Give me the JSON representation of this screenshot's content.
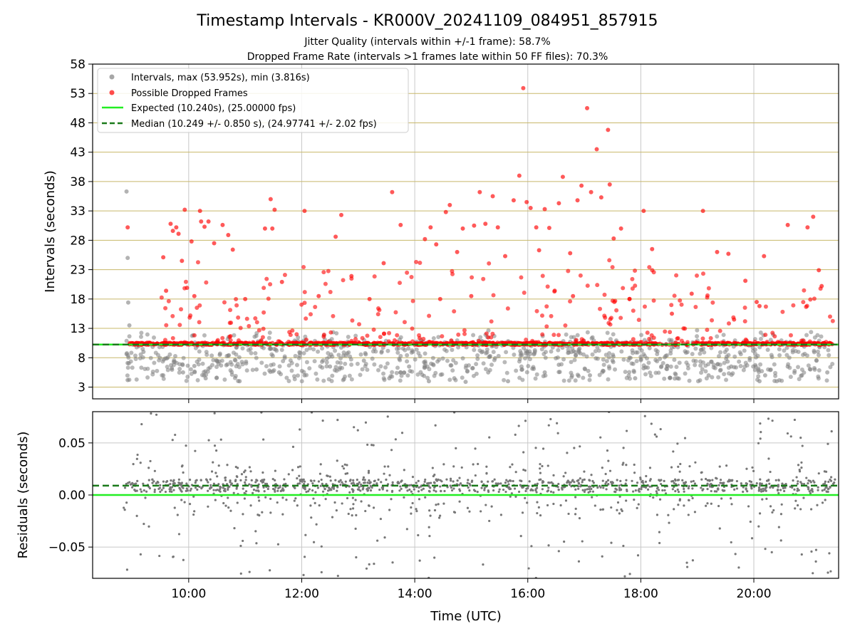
{
  "title": "Timestamp Intervals - KR000V_20241109_084951_857915",
  "subtitle1": "Jitter Quality (intervals within +/-1 frame): 58.7%",
  "subtitle2": "Dropped Frame Rate (intervals >1 frames late within 50 FF files): 70.3%",
  "colors": {
    "intervals": "#808080",
    "dropped": "#ff0000",
    "expected": "#22ee22",
    "median": "#1a7a1a",
    "hgrid": "#c8b86a",
    "vgrid": "#c8c8c8",
    "residuals": "#777777"
  },
  "chart_data": [
    {
      "type": "scatter",
      "ylabel": "Intervals (seconds)",
      "ylim": [
        1,
        58
      ],
      "yticks": [
        "3",
        "8",
        "13",
        "18",
        "23",
        "28",
        "33",
        "38",
        "43",
        "48",
        "53",
        "58"
      ],
      "xlim_hours": [
        8.3,
        21.5
      ],
      "grid": true,
      "legend_position": "top-left",
      "legend": [
        "Intervals, max (53.952s), min (3.816s)",
        "Possible Dropped Frames",
        "Expected (10.240s), (25.00000 fps)",
        "Median (10.249 +/- 0.850 s), (24.97741 +/- 2.02 fps)"
      ],
      "expected": 10.24,
      "median": 10.249,
      "max": 53.952,
      "min": 3.816,
      "series": [
        {
          "name": "Possible Dropped Frames",
          "points": [
            [
              8.92,
              30.2
            ],
            [
              9.55,
              25.1
            ],
            [
              9.6,
              19.4
            ],
            [
              9.68,
              30.8
            ],
            [
              9.72,
              29.6
            ],
            [
              9.78,
              30.2
            ],
            [
              9.82,
              29.1
            ],
            [
              9.88,
              24.5
            ],
            [
              9.93,
              33.2
            ],
            [
              9.97,
              19.9
            ],
            [
              10.05,
              27.8
            ],
            [
              10.2,
              33.0
            ],
            [
              10.22,
              31.2
            ],
            [
              10.28,
              30.3
            ],
            [
              10.35,
              31.2
            ],
            [
              10.45,
              27.5
            ],
            [
              10.6,
              30.6
            ],
            [
              10.7,
              28.9
            ],
            [
              10.78,
              26.4
            ],
            [
              11.35,
              30.0
            ],
            [
              11.45,
              35.0
            ],
            [
              11.48,
              30.0
            ],
            [
              11.52,
              33.2
            ],
            [
              11.65,
              20.9
            ],
            [
              12.05,
              33.0
            ],
            [
              12.6,
              28.6
            ],
            [
              12.7,
              32.3
            ],
            [
              12.88,
              21.9
            ],
            [
              13.45,
              24.1
            ],
            [
              13.6,
              36.2
            ],
            [
              13.75,
              30.6
            ],
            [
              14.18,
              28.2
            ],
            [
              14.28,
              30.2
            ],
            [
              14.38,
              27.3
            ],
            [
              14.55,
              32.8
            ],
            [
              14.62,
              34.0
            ],
            [
              14.75,
              26.0
            ],
            [
              14.85,
              30.0
            ],
            [
              15.05,
              30.5
            ],
            [
              15.15,
              36.2
            ],
            [
              15.25,
              30.8
            ],
            [
              15.38,
              35.5
            ],
            [
              15.47,
              30.2
            ],
            [
              15.6,
              25.3
            ],
            [
              15.75,
              34.8
            ],
            [
              15.85,
              39.0
            ],
            [
              15.92,
              53.9
            ],
            [
              15.98,
              34.5
            ],
            [
              16.05,
              33.5
            ],
            [
              16.15,
              30.2
            ],
            [
              16.2,
              26.3
            ],
            [
              16.3,
              33.3
            ],
            [
              16.38,
              30.1
            ],
            [
              16.55,
              34.3
            ],
            [
              16.62,
              38.8
            ],
            [
              16.75,
              25.8
            ],
            [
              16.88,
              34.8
            ],
            [
              16.95,
              37.3
            ],
            [
              17.05,
              50.5
            ],
            [
              17.12,
              36.2
            ],
            [
              17.22,
              43.5
            ],
            [
              17.3,
              35.3
            ],
            [
              17.42,
              46.8
            ],
            [
              17.45,
              37.5
            ],
            [
              17.52,
              28.3
            ],
            [
              17.65,
              30.0
            ],
            [
              18.05,
              33.0
            ],
            [
              18.2,
              26.5
            ],
            [
              18.9,
              18.9
            ],
            [
              19.1,
              33.0
            ],
            [
              19.35,
              26.0
            ],
            [
              19.55,
              25.7
            ],
            [
              19.85,
              21.1
            ],
            [
              20.1,
              16.8
            ],
            [
              20.18,
              25.3
            ],
            [
              20.6,
              30.6
            ],
            [
              20.95,
              30.2
            ],
            [
              21.05,
              32.0
            ],
            [
              21.15,
              22.9
            ],
            [
              21.2,
              20.2
            ],
            [
              10.1,
              18.5
            ],
            [
              11.0,
              18.0
            ],
            [
              12.3,
              18.5
            ],
            [
              13.2,
              18.0
            ],
            [
              14.45,
              18.0
            ],
            [
              15.0,
              18.5
            ],
            [
              16.8,
              18.5
            ],
            [
              17.8,
              18.0
            ],
            [
              18.55,
              15.5
            ],
            [
              19.65,
              14.5
            ],
            [
              20.05,
              17.5
            ]
          ]
        },
        {
          "name": "Intervals, max (53.952s), min (3.816s)",
          "points": [
            [
              8.9,
              36.3
            ],
            [
              8.92,
              25.0
            ],
            [
              8.93,
              17.4
            ],
            [
              8.95,
              13.5
            ],
            [
              8.92,
              7.1
            ],
            [
              8.92,
              4.2
            ],
            [
              9.2,
              9.0
            ],
            [
              9.55,
              5.0
            ],
            [
              9.7,
              6.2
            ],
            [
              9.9,
              5.5
            ],
            [
              10.1,
              6.6
            ],
            [
              10.3,
              4.5
            ],
            [
              10.55,
              8.5
            ],
            [
              10.9,
              4.0
            ],
            [
              11.2,
              6.0
            ],
            [
              11.6,
              5.5
            ],
            [
              12.05,
              5.0
            ],
            [
              12.5,
              6.5
            ],
            [
              13.1,
              7.5
            ],
            [
              13.55,
              4.5
            ],
            [
              13.9,
              6.5
            ],
            [
              14.25,
              4.0
            ],
            [
              14.7,
              4.5
            ],
            [
              14.9,
              3.9
            ],
            [
              15.3,
              5.5
            ],
            [
              15.65,
              4.0
            ],
            [
              15.9,
              6.0
            ],
            [
              16.3,
              5.5
            ],
            [
              16.55,
              6.8
            ],
            [
              17.1,
              5.0
            ],
            [
              17.5,
              7.5
            ],
            [
              17.9,
              4.5
            ],
            [
              18.05,
              6.2
            ],
            [
              18.65,
              4.5
            ],
            [
              19.2,
              5.0
            ],
            [
              19.6,
              6.5
            ],
            [
              20.1,
              4.0
            ],
            [
              20.2,
              5.0
            ],
            [
              20.6,
              6.5
            ],
            [
              20.85,
              5.0
            ],
            [
              21.0,
              6.0
            ],
            [
              21.3,
              5.5
            ]
          ]
        }
      ]
    },
    {
      "type": "scatter",
      "xlabel": "Time (UTC)",
      "ylabel": "Residuals (seconds)",
      "ylim": [
        -0.08,
        0.08
      ],
      "yticks": [
        "−0.05",
        "0.00",
        "0.05"
      ],
      "xticks": [
        "10:00",
        "12:00",
        "14:00",
        "16:00",
        "18:00",
        "20:00"
      ],
      "xlim_hours": [
        8.3,
        21.5
      ],
      "expected": 0.0,
      "median": 0.009
    }
  ]
}
